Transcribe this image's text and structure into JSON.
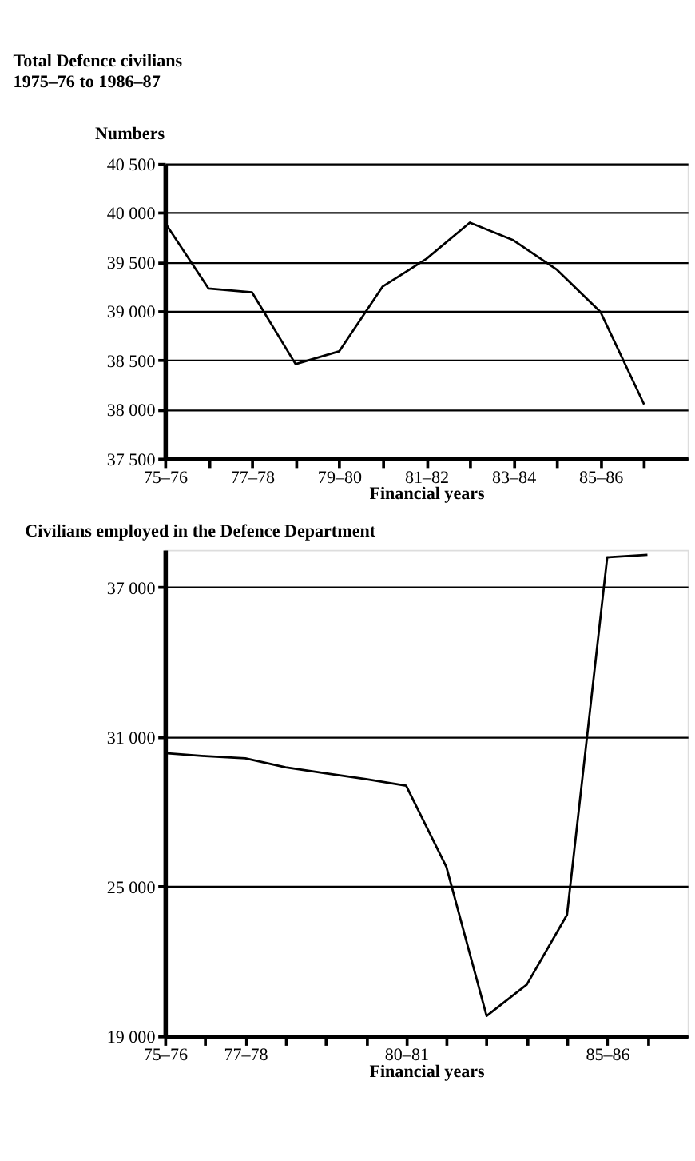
{
  "chart_data": [
    {
      "type": "line",
      "title": [
        "Total Defence civilians",
        "1975–76 to 1986–87"
      ],
      "ylabel": "Numbers",
      "xlabel": "Financial years",
      "categories": [
        "75–76",
        null,
        "77–78",
        null,
        "79–80",
        null,
        "81–82",
        null,
        "83–84",
        null,
        "85–86",
        null
      ],
      "series": [
        {
          "color": "#000000",
          "values": [
            39900,
            39230,
            39190,
            38460,
            38590,
            39250,
            39530,
            39900,
            39720,
            39420,
            38990,
            38050
          ]
        }
      ],
      "ylim": [
        37500,
        40500
      ],
      "yticks": [
        {
          "value": 37500,
          "label": "37 500"
        },
        {
          "value": 38000,
          "label": "38 000"
        },
        {
          "value": 38500,
          "label": "38 500"
        },
        {
          "value": 39000,
          "label": "39 000"
        },
        {
          "value": 39500,
          "label": "39 500"
        },
        {
          "value": 40000,
          "label": "40 000"
        },
        {
          "value": 40500,
          "label": "40 500"
        }
      ],
      "grid": "y",
      "marker": "none",
      "line_style": "solid"
    },
    {
      "type": "line",
      "title": "Civilians employed in the Defence Department",
      "xlabel": "Financial years",
      "categories": [
        "75–76",
        null,
        "77–78",
        null,
        null,
        null,
        "80–81",
        null,
        null,
        null,
        null,
        "85–86",
        null
      ],
      "series": [
        {
          "color": "#000000",
          "values": [
            30350,
            30230,
            30140,
            29780,
            29540,
            29310,
            29040,
            25790,
            19810,
            21070,
            23870,
            38200,
            38300
          ]
        }
      ],
      "ylim": [
        19000,
        38500
      ],
      "yticks": [
        {
          "value": 19000,
          "label": "19 000"
        },
        {
          "value": 25000,
          "label": "25 000"
        },
        {
          "value": 31000,
          "label": "31 000"
        },
        {
          "value": 37000,
          "label": "37 000"
        }
      ],
      "grid": "y",
      "marker": "none",
      "line_style": "solid"
    }
  ]
}
